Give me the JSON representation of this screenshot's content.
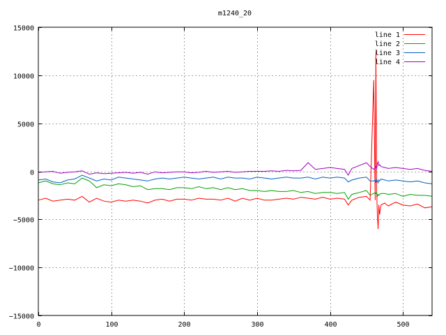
{
  "chart_data": {
    "type": "line",
    "title": "m1240_20",
    "xlabel": "",
    "ylabel": "",
    "xlim": [
      0,
      540
    ],
    "ylim": [
      -15000,
      15000
    ],
    "x_ticks": [
      0,
      100,
      200,
      300,
      400,
      500
    ],
    "y_ticks": [
      -15000,
      -10000,
      -5000,
      0,
      5000,
      10000,
      15000
    ],
    "x_tick_labels": [
      "0",
      "100",
      "200",
      "300",
      "400",
      "500"
    ],
    "y_tick_labels": [
      "−15000",
      "−10000",
      "−5000",
      "0",
      "5000",
      "10000",
      "15000"
    ],
    "grid": true,
    "legend_position": "top-right",
    "x": [
      0,
      10,
      20,
      30,
      40,
      50,
      60,
      70,
      80,
      90,
      100,
      110,
      120,
      130,
      140,
      150,
      160,
      170,
      180,
      190,
      200,
      210,
      220,
      230,
      240,
      250,
      260,
      270,
      280,
      290,
      300,
      310,
      320,
      330,
      340,
      350,
      360,
      370,
      380,
      390,
      400,
      410,
      420,
      425,
      430,
      440,
      450,
      455,
      460,
      462,
      463,
      464,
      465,
      466,
      467,
      468,
      470,
      475,
      480,
      490,
      500,
      510,
      520,
      530,
      540
    ],
    "series": [
      {
        "name": "line 1",
        "color": "#ff0000",
        "values": [
          -3000,
          -2800,
          -3100,
          -3000,
          -2900,
          -3000,
          -2600,
          -3200,
          -2800,
          -3100,
          -3200,
          -3000,
          -3100,
          -3000,
          -3100,
          -3300,
          -3000,
          -2900,
          -3100,
          -2900,
          -2900,
          -3000,
          -2800,
          -2900,
          -2900,
          -3000,
          -2800,
          -3100,
          -2800,
          -3000,
          -2800,
          -3000,
          -3000,
          -2900,
          -2800,
          -2900,
          -2700,
          -2800,
          -2900,
          -2700,
          -2900,
          -2800,
          -2900,
          -3500,
          -3000,
          -2700,
          -2600,
          -3000,
          9500,
          -3000,
          12500,
          -2000,
          -4500,
          -6000,
          -3500,
          -4500,
          -3500,
          -3300,
          -3600,
          -3200,
          -3500,
          -3600,
          -3400,
          -3800,
          -3700
        ]
      },
      {
        "name": "line 2",
        "color": "#00a000",
        "values": [
          -1200,
          -1000,
          -1300,
          -1400,
          -1200,
          -1300,
          -700,
          -1000,
          -1700,
          -1400,
          -1500,
          -1300,
          -1400,
          -1600,
          -1500,
          -1900,
          -1800,
          -1800,
          -1900,
          -1700,
          -1700,
          -1800,
          -1600,
          -1800,
          -1700,
          -1900,
          -1700,
          -1900,
          -1800,
          -2000,
          -2000,
          -2100,
          -2000,
          -2100,
          -2100,
          -2000,
          -2200,
          -2100,
          -2300,
          -2200,
          -2200,
          -2300,
          -2200,
          -2900,
          -2400,
          -2200,
          -2000,
          -2500,
          -2300,
          -2200,
          -2300,
          -2200,
          -2600,
          -2400,
          -2500,
          -2400,
          -2300,
          -2300,
          -2400,
          -2300,
          -2600,
          -2400,
          -2500,
          -2500,
          -2600
        ]
      },
      {
        "name": "line 3",
        "color": "#0060c0",
        "values": [
          -900,
          -800,
          -1100,
          -1200,
          -900,
          -800,
          -400,
          -700,
          -1000,
          -800,
          -900,
          -600,
          -700,
          -800,
          -900,
          -1000,
          -800,
          -700,
          -800,
          -700,
          -600,
          -700,
          -800,
          -700,
          -600,
          -800,
          -600,
          -700,
          -700,
          -800,
          -600,
          -700,
          -800,
          -700,
          -600,
          -700,
          -700,
          -600,
          -800,
          -600,
          -700,
          -600,
          -700,
          -1100,
          -900,
          -700,
          -600,
          -1000,
          -1000,
          -900,
          -1100,
          -800,
          -1000,
          -1200,
          -900,
          -1000,
          -800,
          -900,
          -1000,
          -900,
          -1000,
          -1100,
          -1000,
          -1200,
          -1300
        ]
      },
      {
        "name": "line 4",
        "color": "#a000c0",
        "values": [
          -100,
          -50,
          0,
          -200,
          -100,
          -50,
          50,
          -300,
          -150,
          -250,
          -200,
          -150,
          -100,
          -200,
          -100,
          -300,
          -50,
          -150,
          -100,
          -50,
          -50,
          -150,
          -100,
          0,
          -100,
          -50,
          0,
          -100,
          -50,
          0,
          0,
          0,
          50,
          0,
          100,
          50,
          100,
          900,
          200,
          300,
          400,
          300,
          200,
          -400,
          300,
          600,
          900,
          500,
          200,
          400,
          500,
          300,
          800,
          1000,
          600,
          700,
          500,
          400,
          300,
          400,
          300,
          200,
          300,
          100,
          0
        ]
      }
    ]
  }
}
